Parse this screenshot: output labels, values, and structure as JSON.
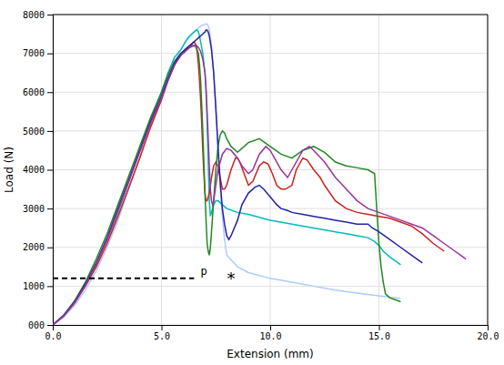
{
  "chart_data": {
    "type": "line",
    "xlabel": "Extension (mm)",
    "ylabel": "Load (N)",
    "xlim": [
      0.0,
      20.0
    ],
    "ylim": [
      0,
      8000
    ],
    "xticks": [
      {
        "value": 0.0,
        "label": "0.0"
      },
      {
        "value": 5.0,
        "label": "5.0"
      },
      {
        "value": 10.0,
        "label": "10.0"
      },
      {
        "value": 15.0,
        "label": "15.0"
      },
      {
        "value": 20.0,
        "label": "20.0"
      }
    ],
    "yticks": [
      {
        "value": 0,
        "label": "000"
      },
      1000,
      2000,
      3000,
      4000,
      5000,
      6000,
      7000,
      8000
    ],
    "grid": true,
    "reference_lines": [
      {
        "y": 1200,
        "x": [
          0.0,
          6.5
        ],
        "line_style": "dashed",
        "color": "black"
      }
    ],
    "annotations": [
      {
        "text": "p",
        "x": 6.8,
        "y": 1200
      },
      {
        "text": "*",
        "x": 8.2,
        "y": 1200
      }
    ],
    "series": [
      {
        "color": "#aaccff",
        "x": [
          0,
          0.5,
          1,
          1.5,
          2,
          2.5,
          3,
          3.5,
          4,
          4.5,
          5,
          5.5,
          5.8,
          6.0,
          6.2,
          6.4,
          6.5,
          6.6,
          6.7,
          6.75,
          6.8,
          6.85,
          6.9,
          6.95,
          7.0,
          7.05,
          7.1,
          7.15,
          7.2,
          7.3,
          7.4,
          7.5,
          7.6,
          7.7,
          7.8,
          7.9,
          8.0,
          8.5,
          9.0,
          10.0,
          11.0,
          12.0,
          13.0,
          14.0,
          15.0,
          16.0
        ],
        "values": [
          0,
          200,
          500,
          900,
          1400,
          2000,
          2700,
          3500,
          4300,
          5200,
          6000,
          6600,
          7000,
          7200,
          7400,
          7500,
          7550,
          7600,
          7650,
          7680,
          7700,
          7720,
          7730,
          7740,
          7750,
          7760,
          7750,
          7700,
          7600,
          7200,
          6500,
          5500,
          4500,
          3500,
          2800,
          2200,
          1800,
          1500,
          1350,
          1200,
          1100,
          1000,
          900,
          820,
          750,
          680
        ]
      },
      {
        "color": "#00bbbb",
        "x": [
          0,
          0.5,
          1,
          1.5,
          2,
          2.5,
          3,
          3.5,
          4,
          4.5,
          5,
          5.3,
          5.6,
          5.9,
          6.1,
          6.3,
          6.5,
          6.6,
          6.65,
          6.7,
          6.75,
          6.8,
          6.9,
          7.0,
          7.05,
          7.1,
          7.15,
          7.2,
          7.25,
          7.3,
          7.4,
          7.5,
          7.6,
          7.8,
          8.0,
          8.5,
          9.0,
          10.0,
          11.0,
          12.0,
          13.0,
          13.5,
          14.0,
          14.5,
          14.8,
          15.0,
          15.2,
          15.5,
          16.0
        ],
        "values": [
          0,
          250,
          600,
          1050,
          1600,
          2200,
          2900,
          3700,
          4500,
          5300,
          6000,
          6500,
          6900,
          7100,
          7300,
          7450,
          7550,
          7600,
          7600,
          7550,
          7450,
          7300,
          7000,
          6500,
          6000,
          5200,
          4200,
          3200,
          2800,
          2900,
          3100,
          3200,
          3200,
          3100,
          3000,
          2900,
          2850,
          2700,
          2600,
          2500,
          2400,
          2350,
          2300,
          2250,
          2150,
          2050,
          1900,
          1750,
          1550
        ]
      },
      {
        "color": "#cc2222",
        "x": [
          0,
          0.5,
          1,
          1.5,
          2,
          2.5,
          3,
          3.5,
          4,
          4.5,
          5,
          5.3,
          5.6,
          5.9,
          6.1,
          6.3,
          6.5,
          6.6,
          6.65,
          6.7,
          6.75,
          6.8,
          6.85,
          6.9,
          6.95,
          7.0,
          7.05,
          7.1,
          7.2,
          7.3,
          7.4,
          7.5,
          7.6,
          7.7,
          7.8,
          7.9,
          8.0,
          8.2,
          8.4,
          8.5,
          8.6,
          8.8,
          9.0,
          9.2,
          9.5,
          9.7,
          9.9,
          10.1,
          10.3,
          10.5,
          10.7,
          11.0,
          11.2,
          11.5,
          11.7,
          12.0,
          12.3,
          12.5,
          13.0,
          13.5,
          14.0,
          14.5,
          15.0,
          15.5,
          16.0,
          16.5,
          17.0,
          17.5,
          18.0
        ],
        "values": [
          0,
          230,
          560,
          1000,
          1500,
          2100,
          2800,
          3550,
          4300,
          5100,
          5800,
          6300,
          6700,
          7000,
          7100,
          7200,
          7300,
          7200,
          7000,
          6700,
          6300,
          5800,
          5200,
          4500,
          3900,
          3400,
          3200,
          3200,
          3400,
          3800,
          4100,
          4200,
          4100,
          3800,
          3500,
          3500,
          3600,
          4000,
          4300,
          4300,
          4200,
          3900,
          3600,
          3700,
          4100,
          4200,
          4150,
          3900,
          3600,
          3500,
          3500,
          3600,
          4000,
          4300,
          4250,
          4000,
          3800,
          3600,
          3200,
          3000,
          2900,
          2850,
          2800,
          2750,
          2650,
          2550,
          2350,
          2100,
          1900
        ]
      },
      {
        "color": "#228822",
        "x": [
          0,
          0.5,
          1,
          1.5,
          2,
          2.5,
          3,
          3.5,
          4,
          4.5,
          5,
          5.3,
          5.6,
          5.9,
          6.1,
          6.3,
          6.5,
          6.6,
          6.7,
          6.75,
          6.8,
          6.85,
          6.9,
          6.95,
          7.0,
          7.05,
          7.1,
          7.15,
          7.2,
          7.25,
          7.3,
          7.4,
          7.5,
          7.6,
          7.7,
          7.8,
          7.9,
          8.0,
          8.2,
          8.5,
          9.0,
          9.5,
          10.0,
          10.5,
          11.0,
          11.5,
          12.0,
          12.5,
          13.0,
          13.5,
          14.0,
          14.5,
          14.8,
          15.0,
          15.1,
          15.2,
          15.3,
          15.5,
          16.0
        ],
        "values": [
          0,
          250,
          620,
          1100,
          1700,
          2350,
          3100,
          3850,
          4600,
          5350,
          6000,
          6450,
          6800,
          7000,
          7100,
          7200,
          7200,
          7150,
          7000,
          6700,
          6300,
          5700,
          5000,
          4200,
          3400,
          2700,
          2100,
          1900,
          1800,
          2000,
          2400,
          3200,
          4000,
          4600,
          4900,
          5000,
          4950,
          4800,
          4600,
          4450,
          4700,
          4800,
          4600,
          4400,
          4300,
          4500,
          4600,
          4450,
          4200,
          4100,
          4050,
          4000,
          3900,
          2100,
          1500,
          1100,
          800,
          700,
          600
        ]
      },
      {
        "color": "#2222aa",
        "x": [
          0,
          0.5,
          1,
          1.5,
          2,
          2.5,
          3,
          3.5,
          4,
          4.5,
          5,
          5.3,
          5.6,
          5.9,
          6.1,
          6.3,
          6.5,
          6.6,
          6.7,
          6.8,
          6.9,
          7.0,
          7.05,
          7.1,
          7.15,
          7.2,
          7.3,
          7.4,
          7.5,
          7.6,
          7.7,
          7.8,
          7.9,
          8.0,
          8.1,
          8.2,
          8.5,
          8.7,
          9.0,
          9.3,
          9.5,
          9.7,
          10.0,
          10.3,
          10.5,
          10.8,
          11.0,
          11.5,
          12.0,
          12.5,
          13.0,
          13.5,
          14.0,
          14.5,
          14.7,
          15.0,
          15.5,
          16.0,
          16.5,
          17.0
        ],
        "values": [
          0,
          240,
          590,
          1050,
          1600,
          2250,
          3000,
          3750,
          4500,
          5250,
          5900,
          6350,
          6750,
          7000,
          7100,
          7200,
          7300,
          7350,
          7400,
          7450,
          7500,
          7550,
          7600,
          7600,
          7550,
          7450,
          7100,
          6500,
          5600,
          4600,
          3700,
          3000,
          2600,
          2300,
          2200,
          2300,
          2700,
          3100,
          3400,
          3550,
          3600,
          3500,
          3300,
          3100,
          3000,
          2950,
          2900,
          2850,
          2800,
          2750,
          2700,
          2650,
          2600,
          2600,
          2500,
          2400,
          2200,
          2000,
          1800,
          1600
        ]
      },
      {
        "color": "#993399",
        "x": [
          0,
          0.5,
          1,
          1.5,
          2,
          2.5,
          3,
          3.5,
          4,
          4.5,
          5,
          5.3,
          5.6,
          5.9,
          6.1,
          6.3,
          6.5,
          6.6,
          6.7,
          6.8,
          6.9,
          7.0,
          7.05,
          7.1,
          7.15,
          7.2,
          7.25,
          7.3,
          7.35,
          7.4,
          7.5,
          7.6,
          7.8,
          8.0,
          8.2,
          8.5,
          8.7,
          9.0,
          9.2,
          9.5,
          9.8,
          10.0,
          10.3,
          10.5,
          10.8,
          11.0,
          11.5,
          11.8,
          12.0,
          12.5,
          13.0,
          13.5,
          14.0,
          14.5,
          15.0,
          15.5,
          16.0,
          16.5,
          17.0,
          17.5,
          18.0,
          18.5,
          19.0
        ],
        "values": [
          0,
          230,
          570,
          1020,
          1570,
          2200,
          2950,
          3700,
          4450,
          5200,
          5850,
          6300,
          6700,
          6950,
          7050,
          7150,
          7200,
          7200,
          7150,
          7050,
          6850,
          6500,
          6100,
          5500,
          4800,
          4100,
          3500,
          3200,
          3100,
          3200,
          3600,
          4000,
          4400,
          4550,
          4500,
          4300,
          4100,
          3900,
          4000,
          4400,
          4600,
          4500,
          4200,
          4000,
          3800,
          4000,
          4500,
          4600,
          4500,
          4200,
          3800,
          3500,
          3200,
          3000,
          2900,
          2800,
          2700,
          2600,
          2500,
          2300,
          2100,
          1900,
          1700
        ]
      }
    ]
  }
}
